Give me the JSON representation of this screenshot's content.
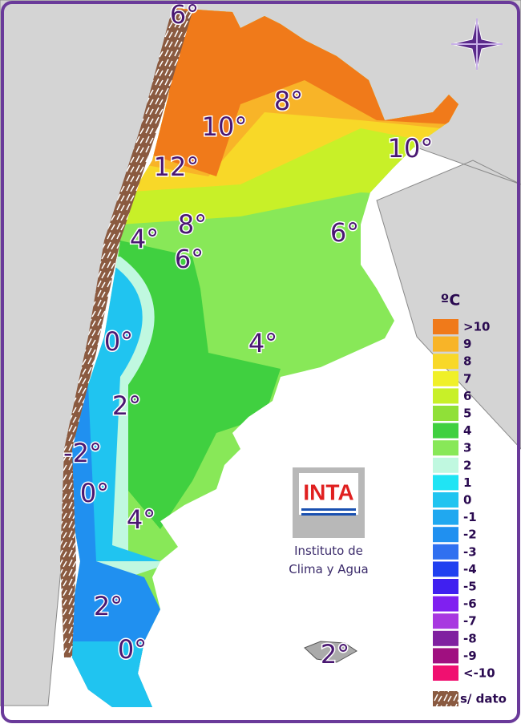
{
  "map_labels": [
    "6°",
    "8°",
    "10°",
    "10°",
    "12°",
    "8°",
    "4°",
    "6°",
    "6°",
    "0°",
    "4°",
    "2°",
    "-2°",
    "0°",
    "4°",
    "2°",
    "0°",
    "2°"
  ],
  "logo": {
    "text": "INTA",
    "caption": [
      "Instituto de",
      "Clima y Agua"
    ]
  },
  "legend": {
    "unit": "ºC",
    "items": [
      {
        "label": ">10",
        "color": "#f07a1a"
      },
      {
        "label": "9",
        "color": "#f8b428"
      },
      {
        "label": "8",
        "color": "#f8d828"
      },
      {
        "label": "7",
        "color": "#f0f028"
      },
      {
        "label": "6",
        "color": "#c8f028"
      },
      {
        "label": "5",
        "color": "#90e038"
      },
      {
        "label": "4",
        "color": "#40d040"
      },
      {
        "label": "3",
        "color": "#88e858"
      },
      {
        "label": "2",
        "color": "#c0f8e0"
      },
      {
        "label": "1",
        "color": "#20e4f4"
      },
      {
        "label": "0",
        "color": "#20c4f0"
      },
      {
        "label": "-1",
        "color": "#20a8f0"
      },
      {
        "label": "-2",
        "color": "#2090f0"
      },
      {
        "label": "-3",
        "color": "#3070f0"
      },
      {
        "label": "-4",
        "color": "#2040f0"
      },
      {
        "label": "-5",
        "color": "#4020f0"
      },
      {
        "label": "-6",
        "color": "#8020f0"
      },
      {
        "label": "-7",
        "color": "#a838e0"
      },
      {
        "label": "-8",
        "color": "#8020a0"
      },
      {
        "label": "-9",
        "color": "#a01080"
      },
      {
        "label": "<-10",
        "color": "#f01070"
      }
    ],
    "no_data": "s/ dato"
  }
}
